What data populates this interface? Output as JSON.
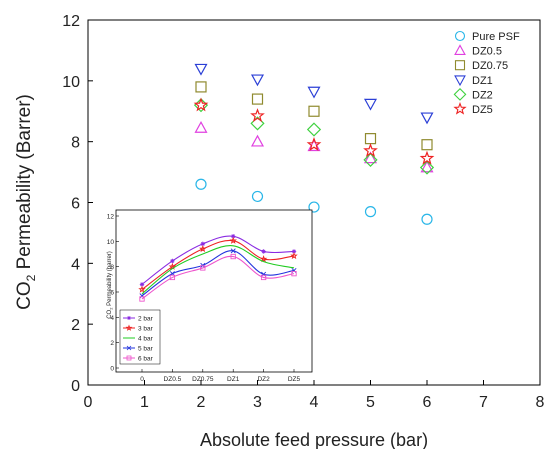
{
  "chart_data": [
    {
      "type": "scatter",
      "xlabel": "Absolute feed pressure (bar)",
      "ylabel_prefix": "CO",
      "ylabel_sub": "2",
      "ylabel_suffix": " Permeability (Barrer)",
      "xlim": [
        0,
        8
      ],
      "ylim": [
        0,
        12
      ],
      "xticks": [
        "0",
        "1",
        "2",
        "3",
        "4",
        "5",
        "6",
        "7",
        "8"
      ],
      "yticks": [
        "0",
        "2",
        "4",
        "6",
        "8",
        "10",
        "12"
      ],
      "legend_position": "top-right",
      "x": [
        2,
        3,
        4,
        5,
        6
      ],
      "series": [
        {
          "name": "Pure PSF",
          "marker": "circle",
          "color": "#29b6e8",
          "values": [
            6.6,
            6.2,
            5.85,
            5.7,
            5.45
          ]
        },
        {
          "name": "DZ0.5",
          "marker": "triangle-up",
          "color": "#e040e0",
          "values": [
            8.45,
            8.0,
            7.85,
            7.45,
            7.15
          ]
        },
        {
          "name": "DZ0.75",
          "marker": "square",
          "color": "#8f8a2e",
          "values": [
            9.8,
            9.4,
            9.0,
            8.1,
            7.9
          ]
        },
        {
          "name": "DZ1",
          "marker": "triangle-down",
          "color": "#2b3fd6",
          "values": [
            10.4,
            10.05,
            9.65,
            9.25,
            8.8
          ]
        },
        {
          "name": "DZ2",
          "marker": "diamond",
          "color": "#3fd13f",
          "values": [
            9.2,
            8.6,
            8.4,
            7.4,
            7.15
          ]
        },
        {
          "name": "DZ5",
          "marker": "star",
          "color": "#ee2222",
          "values": [
            9.2,
            8.85,
            7.9,
            7.7,
            7.45
          ]
        }
      ]
    },
    {
      "type": "line",
      "ylabel_prefix": "CO",
      "ylabel_sub": "2",
      "ylabel_suffix": " Permeability (barrer)",
      "categories": [
        "0",
        "DZ0.5",
        "DZ0.75",
        "DZ1",
        "DZ2",
        "DZ5"
      ],
      "ylim": [
        0,
        12
      ],
      "yticks": [
        "0",
        "2",
        "4",
        "6",
        "8",
        "10",
        "12"
      ],
      "legend_position": "bottom-left",
      "series": [
        {
          "name": "2 bar",
          "marker": "asterisk",
          "color": "#8a2be2",
          "values": [
            6.6,
            8.45,
            9.8,
            10.4,
            9.2,
            9.2
          ]
        },
        {
          "name": "3 bar",
          "marker": "star",
          "color": "#ee2222",
          "values": [
            6.2,
            8.0,
            9.4,
            10.05,
            8.6,
            8.85
          ]
        },
        {
          "name": "4 bar",
          "marker": "line",
          "color": "#22cc22",
          "values": [
            5.85,
            7.85,
            9.0,
            9.65,
            8.4,
            7.9
          ]
        },
        {
          "name": "5 bar",
          "marker": "x",
          "color": "#2233dd",
          "values": [
            5.7,
            7.45,
            8.1,
            9.25,
            7.4,
            7.7
          ]
        },
        {
          "name": "6 bar",
          "marker": "square",
          "color": "#ee55cc",
          "values": [
            5.45,
            7.15,
            7.9,
            8.8,
            7.15,
            7.45
          ]
        }
      ]
    }
  ]
}
